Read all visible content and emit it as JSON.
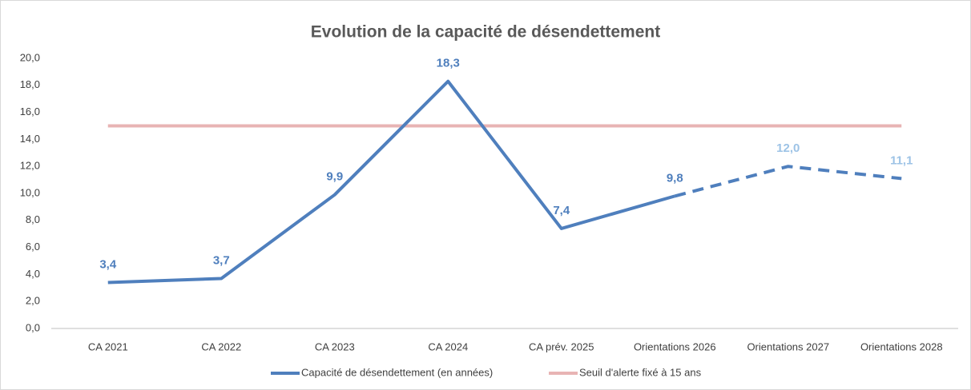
{
  "chart_data": {
    "type": "line",
    "title": "Evolution de la capacité de désendettement",
    "categories": [
      "CA 2021",
      "CA 2022",
      "CA 2023",
      "CA 2024",
      "CA prév. 2025",
      "Orientations 2026",
      "Orientations 2027",
      "Orientations 2028"
    ],
    "series": [
      {
        "name": "Capacité de désendettement (en années)",
        "color": "#4f7fbd",
        "projected_color": "#9dc3e6",
        "projected_from": 6,
        "values": [
          3.4,
          3.7,
          9.9,
          18.3,
          7.4,
          9.8,
          12.0,
          11.1
        ],
        "value_labels": [
          "3,4",
          "3,7",
          "9,9",
          "18,3",
          "7,4",
          "9,8",
          "12,0",
          "11,1"
        ]
      },
      {
        "name": "Seuil d'alerte fixé à 15 ans",
        "color": "#e8b4b4",
        "values": [
          15,
          15,
          15,
          15,
          15,
          15,
          15,
          15
        ]
      }
    ],
    "ylim": [
      0,
      20
    ],
    "yticks": [
      {
        "value": 0,
        "label": "0,0"
      },
      {
        "value": 2,
        "label": "2,0"
      },
      {
        "value": 4,
        "label": "4,0"
      },
      {
        "value": 6,
        "label": "6,0"
      },
      {
        "value": 8,
        "label": "8,0"
      },
      {
        "value": 10,
        "label": "10,0"
      },
      {
        "value": 12,
        "label": "12,0"
      },
      {
        "value": 14,
        "label": "14,0"
      },
      {
        "value": 16,
        "label": "16,0"
      },
      {
        "value": 18,
        "label": "18,0"
      },
      {
        "value": 20,
        "label": "20,0"
      }
    ],
    "grid": false,
    "legend": "bottom"
  }
}
